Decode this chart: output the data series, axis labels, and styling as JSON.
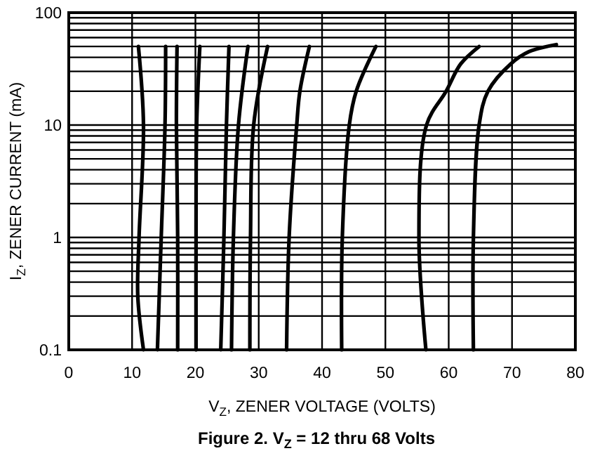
{
  "chart_data": {
    "type": "line",
    "title": "Figure 2. V$_{Z}$ = 12 thru 68 Volts",
    "xlabel": "V$_{Z}$, ZENER VOLTAGE (VOLTS)",
    "ylabel": "I$_{Z}$, ZENER CURRENT (mA)",
    "log": "y",
    "grid": true,
    "line_style": "solid",
    "xlim": [
      0,
      80
    ],
    "xticks": [
      0,
      10,
      20,
      30,
      40,
      50,
      60,
      70,
      80
    ],
    "ylim": [
      0.1,
      100
    ],
    "yticks": [
      0.1,
      {
        "value": 0.2,
        "label": null
      },
      {
        "value": 0.3,
        "label": null
      },
      {
        "value": 0.4,
        "label": null
      },
      {
        "value": 0.5,
        "label": null
      },
      {
        "value": 0.6,
        "label": null
      },
      {
        "value": 0.7,
        "label": null
      },
      {
        "value": 0.8,
        "label": null
      },
      {
        "value": 0.9,
        "label": null
      },
      1,
      {
        "value": 2,
        "label": null
      },
      {
        "value": 3,
        "label": null
      },
      {
        "value": 4,
        "label": null
      },
      {
        "value": 5,
        "label": null
      },
      {
        "value": 6,
        "label": null
      },
      {
        "value": 7,
        "label": null
      },
      {
        "value": 8,
        "label": null
      },
      {
        "value": 9,
        "label": null
      },
      10,
      {
        "value": 20,
        "label": null
      },
      {
        "value": 30,
        "label": null
      },
      {
        "value": 40,
        "label": null
      },
      {
        "value": 50,
        "label": null
      },
      {
        "value": 60,
        "label": null
      },
      {
        "value": 70,
        "label": null
      },
      {
        "value": 80,
        "label": null
      },
      {
        "value": 90,
        "label": null
      },
      100
    ],
    "series": [
      {
        "color": "#000000",
        "x": [
          11.8,
          10.9,
          11.1,
          11.8,
          11.0
        ],
        "values": [
          0.1,
          0.3,
          1,
          10,
          50
        ]
      },
      {
        "color": "#000000",
        "x": [
          14.0,
          14.6,
          15.2,
          15.3
        ],
        "values": [
          0.1,
          1,
          10,
          50
        ]
      },
      {
        "color": "#000000",
        "x": [
          17.2,
          17.2,
          17.0,
          17.1
        ],
        "values": [
          0.1,
          1,
          10,
          50
        ]
      },
      {
        "color": "#000000",
        "x": [
          20.1,
          20.1,
          20.2,
          20.7
        ],
        "values": [
          0.1,
          1,
          10,
          50
        ]
      },
      {
        "color": "#000000",
        "x": [
          24.0,
          24.5,
          24.9,
          25.3
        ],
        "values": [
          0.1,
          1,
          10,
          50
        ]
      },
      {
        "color": "#000000",
        "x": [
          25.7,
          26.0,
          26.8,
          28.3
        ],
        "values": [
          0.1,
          1,
          10,
          50
        ]
      },
      {
        "color": "#000000",
        "x": [
          28.6,
          28.7,
          29.2,
          31.4
        ],
        "values": [
          0.1,
          1,
          10,
          50
        ]
      },
      {
        "color": "#000000",
        "x": [
          34.4,
          34.8,
          36.0,
          36.5,
          38.0
        ],
        "values": [
          0.1,
          1,
          10,
          20,
          50
        ]
      },
      {
        "color": "#000000",
        "x": [
          43.1,
          43.2,
          44.3,
          45.4,
          48.5
        ],
        "values": [
          0.1,
          1,
          10,
          20,
          50
        ]
      },
      {
        "color": "#000000",
        "x": [
          56.4,
          55.3,
          56.5,
          59.6,
          61.9,
          64.8
        ],
        "values": [
          0.1,
          1,
          10,
          20,
          35,
          50
        ]
      },
      {
        "color": "#000000",
        "x": [
          63.9,
          63.9,
          64.8,
          66.2,
          69.8,
          72.7,
          77.0
        ],
        "values": [
          0.1,
          1,
          10,
          20,
          35,
          45,
          52
        ]
      }
    ]
  }
}
